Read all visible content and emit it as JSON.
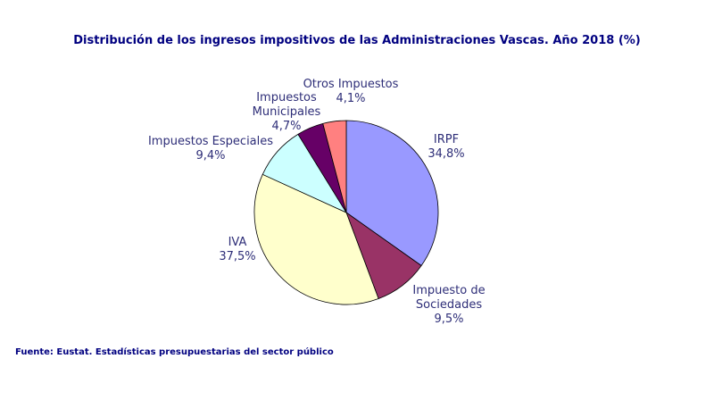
{
  "chart_data": {
    "type": "pie",
    "title": "Distribución  de los ingresos  impositivos  de las Administraciones  Vascas. Año 2018 (%)",
    "start": "12 o'clock",
    "direction": "clockwise",
    "slices": [
      {
        "key": "irpf",
        "lines": [
          "IRPF"
        ],
        "pct_label": "34,8%",
        "value": 34.8,
        "color": "#9999ff"
      },
      {
        "key": "sociedades",
        "lines": [
          "Impuesto de",
          "Sociedades"
        ],
        "pct_label": "9,5%",
        "value": 9.5,
        "color": "#993366"
      },
      {
        "key": "iva",
        "lines": [
          "IVA"
        ],
        "pct_label": "37,5%",
        "value": 37.5,
        "color": "#ffffcc"
      },
      {
        "key": "especiales",
        "lines": [
          "Impuestos Especiales"
        ],
        "pct_label": "9,4%",
        "value": 9.4,
        "color": "#ccffff"
      },
      {
        "key": "municipales",
        "lines": [
          "Impuestos",
          "Municipales"
        ],
        "pct_label": "4,7%",
        "value": 4.7,
        "color": "#660066"
      },
      {
        "key": "otros",
        "lines": [
          "Otros Impuestos"
        ],
        "pct_label": "4,1%",
        "value": 4.1,
        "color": "#ff8080"
      }
    ]
  },
  "source": "Fuente: Eustat. Estadísticas presupuestarias  del sector público"
}
